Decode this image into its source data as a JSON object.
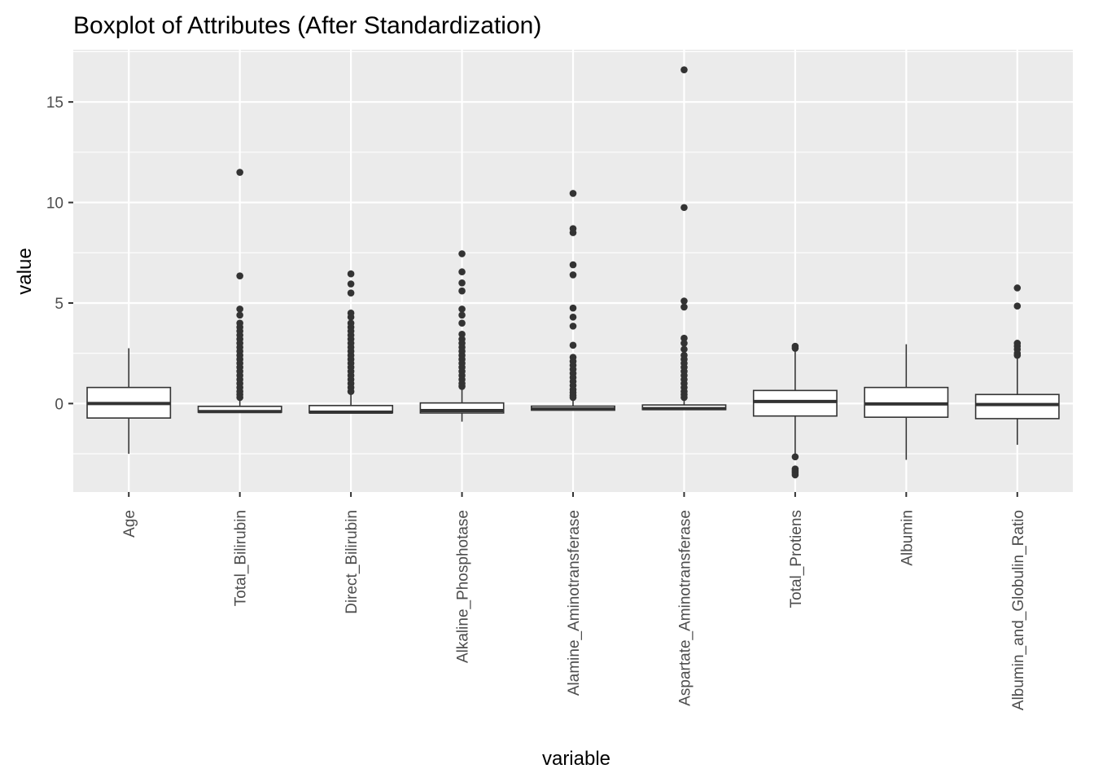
{
  "chart_data": {
    "type": "boxplot",
    "title": "Boxplot of Attributes (After Standardization)",
    "xlabel": "variable",
    "ylabel": "value",
    "ylim": [
      -4.4,
      17.6
    ],
    "yticks": [
      0,
      5,
      10,
      15
    ],
    "grid": true,
    "legend": "none",
    "colors": {
      "panel": "#ebebeb",
      "grid_major": "#ffffff",
      "box_fill": "#ffffff",
      "box_line": "#333333",
      "outlier": "#333333",
      "tick_text": "#4d4d4d"
    },
    "categories": [
      "Age",
      "Total_Bilirubin",
      "Direct_Bilirubin",
      "Alkaline_Phosphotase",
      "Alamine_Aminotransferase",
      "Aspartate_Aminotransferase",
      "Total_Protiens",
      "Albumin",
      "Albumin_and_Globulin_Ratio"
    ],
    "boxes": [
      {
        "whisker_low": -2.5,
        "q1": -0.72,
        "median": 0.0,
        "q3": 0.8,
        "whisker_high": 2.75,
        "outliers": []
      },
      {
        "whisker_low": -0.47,
        "q1": -0.43,
        "median": -0.4,
        "q3": -0.14,
        "whisker_high": 0.25,
        "outliers": [
          11.5,
          6.35,
          4.7,
          4.4,
          4.0,
          3.8,
          3.6,
          3.4,
          3.2,
          3.0,
          2.8,
          2.6,
          2.4,
          2.2,
          2.0,
          1.8,
          1.6,
          1.4,
          1.2,
          1.0,
          0.8,
          0.6,
          0.45,
          0.3
        ]
      },
      {
        "whisker_low": -0.5,
        "q1": -0.46,
        "median": -0.43,
        "q3": -0.1,
        "whisker_high": 0.45,
        "outliers": [
          6.45,
          5.95,
          5.5,
          4.5,
          4.3,
          4.0,
          3.8,
          3.6,
          3.4,
          3.2,
          3.0,
          2.8,
          2.6,
          2.4,
          2.2,
          2.0,
          1.8,
          1.6,
          1.4,
          1.2,
          1.0,
          0.8,
          0.6
        ]
      },
      {
        "whisker_low": -0.9,
        "q1": -0.47,
        "median": -0.35,
        "q3": 0.03,
        "whisker_high": 0.7,
        "outliers": [
          7.45,
          6.55,
          6.0,
          5.6,
          4.7,
          4.4,
          4.0,
          3.45,
          3.2,
          3.0,
          2.8,
          2.6,
          2.4,
          2.2,
          2.0,
          1.8,
          1.6,
          1.4,
          1.2,
          1.0,
          0.85
        ]
      },
      {
        "whisker_low": -0.35,
        "q1": -0.33,
        "median": -0.27,
        "q3": -0.13,
        "whisker_high": 0.25,
        "outliers": [
          10.45,
          8.7,
          8.5,
          6.9,
          6.4,
          4.75,
          4.3,
          3.85,
          2.9,
          2.3,
          2.1,
          1.9,
          1.7,
          1.5,
          1.3,
          1.1,
          0.9,
          0.7,
          0.55,
          0.4,
          0.3
        ]
      },
      {
        "whisker_low": -0.32,
        "q1": -0.3,
        "median": -0.25,
        "q3": -0.07,
        "whisker_high": 0.22,
        "outliers": [
          16.6,
          9.75,
          5.1,
          4.8,
          3.25,
          3.0,
          2.7,
          2.4,
          2.2,
          2.0,
          1.8,
          1.6,
          1.4,
          1.2,
          1.0,
          0.8,
          0.6,
          0.45,
          0.3
        ]
      },
      {
        "whisker_low": -2.6,
        "q1": -0.62,
        "median": 0.1,
        "q3": 0.65,
        "whisker_high": 2.65,
        "outliers": [
          2.85,
          2.75,
          -2.65,
          -3.25,
          -3.35,
          -3.45,
          -3.55
        ]
      },
      {
        "whisker_low": -2.8,
        "q1": -0.68,
        "median": -0.02,
        "q3": 0.8,
        "whisker_high": 2.95,
        "outliers": []
      },
      {
        "whisker_low": -2.05,
        "q1": -0.75,
        "median": -0.05,
        "q3": 0.45,
        "whisker_high": 2.35,
        "outliers": [
          5.75,
          4.85,
          3.0,
          2.85,
          2.7,
          2.5,
          2.4
        ]
      }
    ]
  }
}
